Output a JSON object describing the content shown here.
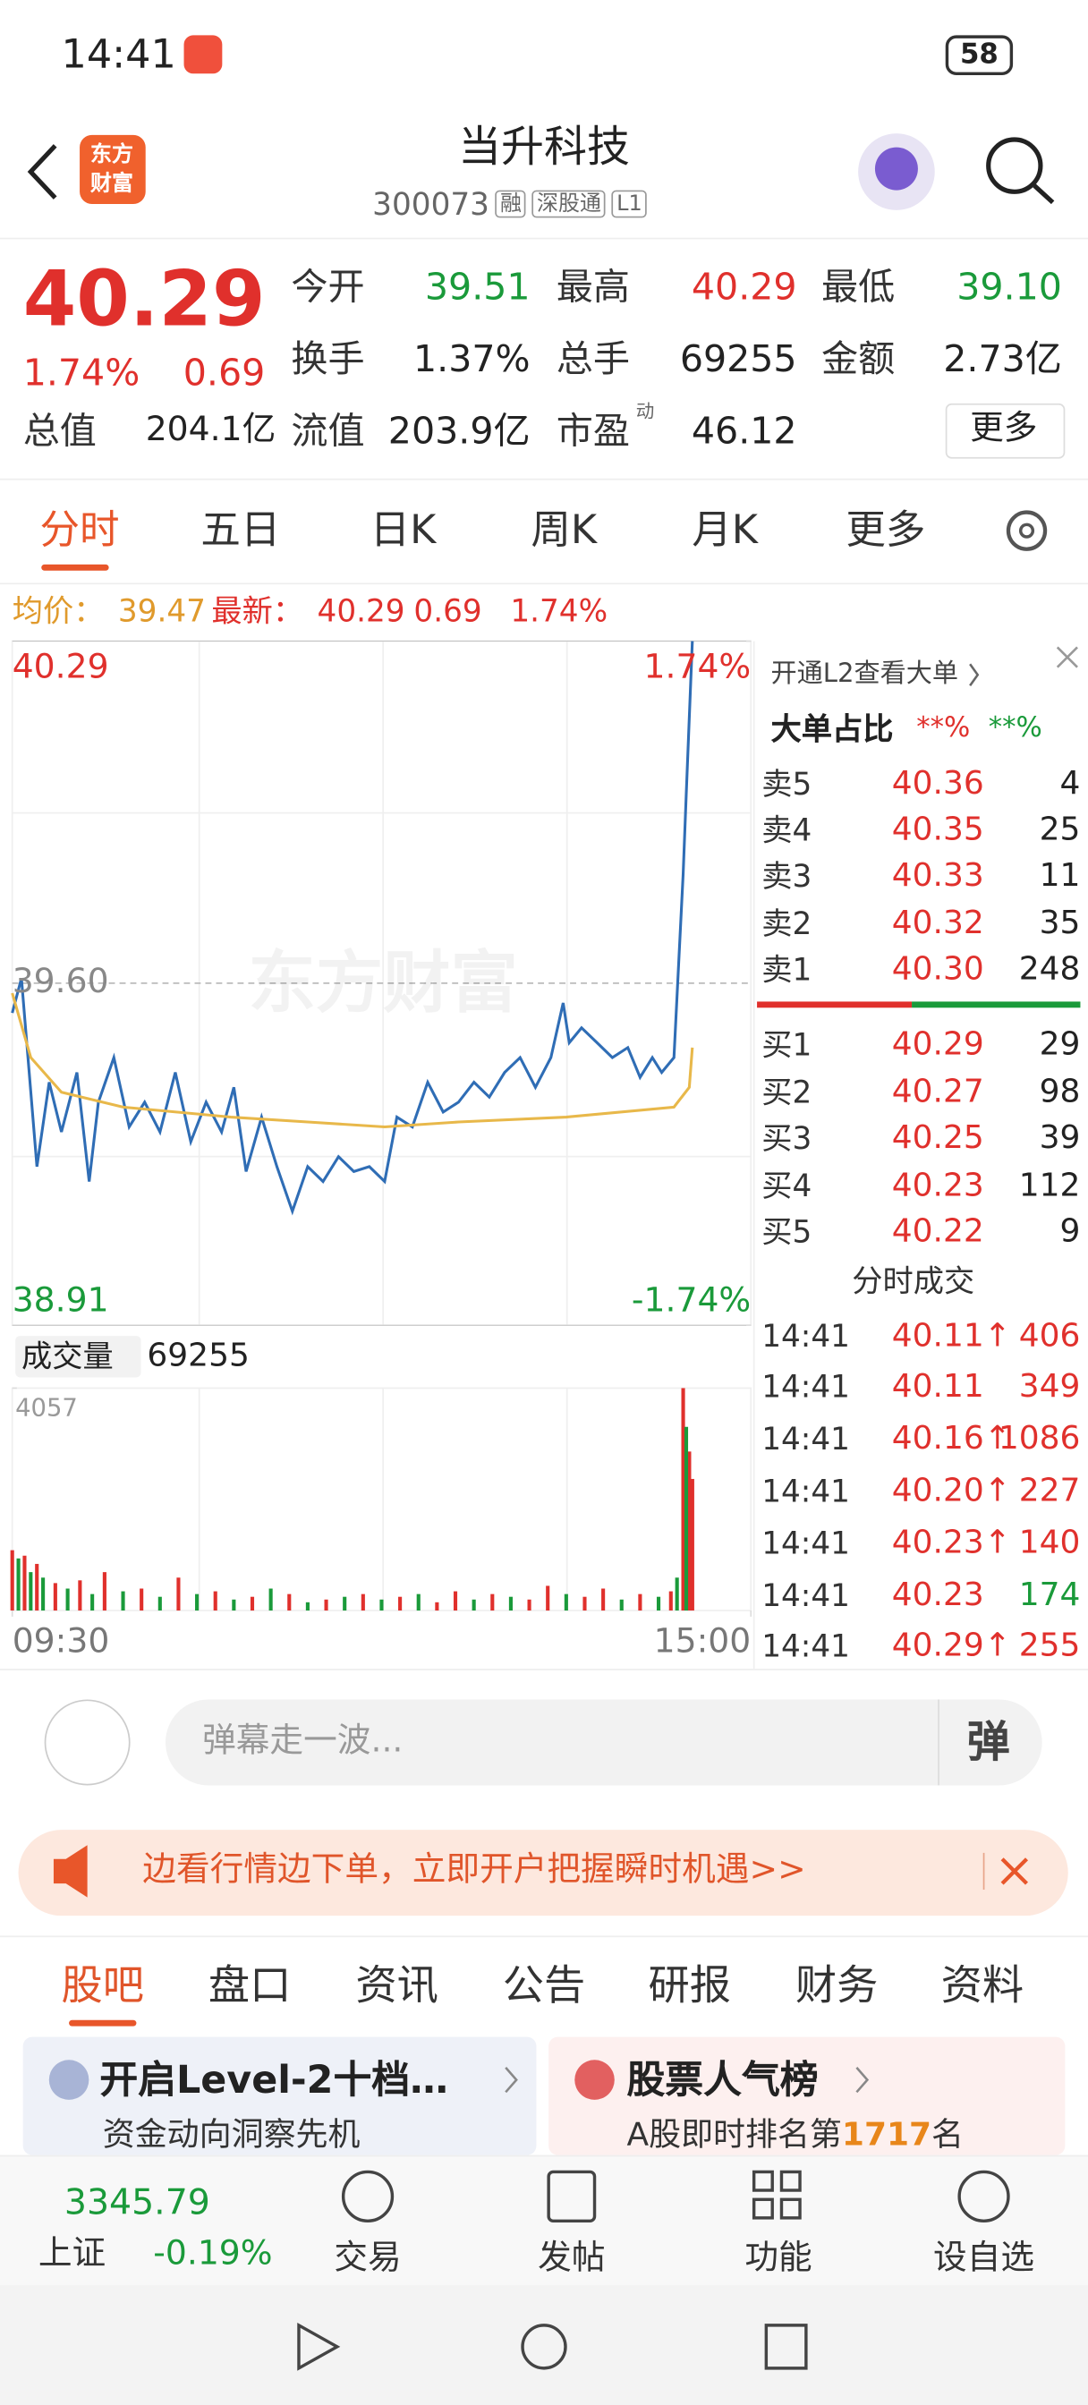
{
  "status_bar": {
    "time": "14:41",
    "battery": "58"
  },
  "header": {
    "logo": [
      "东方",
      "财富"
    ],
    "title": "当升科技",
    "code": "300073",
    "tags": [
      "融",
      "深股通",
      "L1"
    ]
  },
  "quote": {
    "price": "40.29",
    "change_pct": "1.74%",
    "change": "0.69",
    "market_cap": {
      "label": "总值",
      "value": "204.1亿"
    },
    "fields": [
      {
        "label": "今开",
        "value": "39.51",
        "color": "#1a9a3a"
      },
      {
        "label": "最高",
        "value": "40.29",
        "color": "#e0302c"
      },
      {
        "label": "最低",
        "value": "39.10",
        "color": "#1a9a3a"
      },
      {
        "label": "换手",
        "value": "1.37%"
      },
      {
        "label": "总手",
        "value": "69255"
      },
      {
        "label": "金额",
        "value": "2.73亿"
      },
      {
        "label": "流值",
        "value": "203.9亿"
      },
      {
        "label": "市盈",
        "note": "动",
        "value": "46.12"
      }
    ],
    "more": "更多"
  },
  "tabs": [
    "分时",
    "五日",
    "日K",
    "周K",
    "月K",
    "更多"
  ],
  "info_line": {
    "avg_label": "均价：",
    "avg": "39.47",
    "latest_label": "最新：",
    "latest": "40.29",
    "change": "0.69",
    "change_pct": "1.74%"
  },
  "watermark": "东方财富",
  "chart_data": [
    {
      "type": "line",
      "xlim": [
        0,
        240
      ],
      "xticks": [
        {
          "value": 0,
          "label": "09:30"
        },
        {
          "value": 240,
          "label": "15:00"
        }
      ],
      "ylim": [
        38.91,
        40.29
      ],
      "yticks": [
        40.29,
        {
          "value": 39.6,
          "label": "39.60"
        },
        38.91
      ],
      "y2lim": [
        -1.74,
        1.74
      ],
      "y2ticks": [
        {
          "value": 1.74,
          "label": "1.74%"
        },
        {
          "value": -1.74,
          "label": "-1.74%"
        }
      ],
      "grid": true,
      "series": [
        {
          "color": "#2f6db5",
          "x": [
            0,
            3,
            8,
            12,
            16,
            21,
            25,
            28,
            33,
            38,
            43,
            48,
            53,
            58,
            63,
            68,
            72,
            76,
            81,
            86,
            91,
            96,
            101,
            106,
            111,
            116,
            121,
            125,
            130,
            135,
            140,
            145,
            150,
            155,
            160,
            165,
            170,
            175,
            179,
            181,
            185,
            190,
            195,
            200,
            204,
            208,
            211,
            215,
            218,
            219,
            221
          ],
          "values": [
            39.54,
            39.61,
            39.23,
            39.4,
            39.3,
            39.42,
            39.2,
            39.36,
            39.45,
            39.31,
            39.36,
            39.3,
            39.42,
            39.28,
            39.36,
            39.3,
            39.39,
            39.22,
            39.33,
            39.23,
            39.14,
            39.23,
            39.2,
            39.25,
            39.22,
            39.23,
            39.2,
            39.33,
            39.31,
            39.4,
            39.34,
            39.36,
            39.4,
            39.37,
            39.42,
            39.45,
            39.39,
            39.45,
            39.56,
            39.48,
            39.51,
            39.48,
            39.45,
            39.47,
            39.41,
            39.45,
            39.42,
            39.45,
            39.82,
            39.98,
            40.29
          ]
        },
        {
          "color": "#e8b84a",
          "x": [
            0,
            6,
            16,
            36,
            71,
            96,
            121,
            145,
            180,
            215,
            220,
            221
          ],
          "values": [
            39.58,
            39.45,
            39.38,
            39.35,
            39.33,
            39.32,
            39.31,
            39.32,
            39.33,
            39.35,
            39.39,
            39.47
          ]
        }
      ]
    },
    {
      "type": "bar",
      "title": "成交量",
      "total": 69255,
      "xlim": [
        0,
        240
      ],
      "ylim": [
        0,
        4057
      ],
      "yticks": [
        4057
      ],
      "x": [
        0,
        2,
        4,
        6,
        8,
        10,
        14,
        18,
        22,
        26,
        30,
        36,
        42,
        48,
        54,
        60,
        66,
        72,
        78,
        84,
        90,
        96,
        102,
        108,
        114,
        120,
        126,
        132,
        138,
        144,
        150,
        156,
        162,
        168,
        174,
        180,
        186,
        192,
        198,
        204,
        210,
        214,
        216,
        218,
        219,
        220,
        221
      ],
      "series": [
        {
          "color": "#e0302c",
          "values": [
            1100,
            null,
            1000,
            null,
            850,
            null,
            500,
            null,
            550,
            null,
            700,
            null,
            400,
            null,
            600,
            null,
            350,
            null,
            250,
            null,
            300,
            null,
            200,
            null,
            300,
            null,
            250,
            null,
            150,
            350,
            null,
            300,
            null,
            200,
            450,
            null,
            250,
            400,
            null,
            300,
            null,
            350,
            null,
            4057,
            null,
            2900,
            2400
          ]
        },
        {
          "color": "#1a9a3a",
          "values": [
            null,
            950,
            null,
            700,
            null,
            600,
            null,
            400,
            null,
            300,
            null,
            350,
            null,
            250,
            null,
            300,
            null,
            200,
            null,
            400,
            null,
            150,
            null,
            250,
            null,
            200,
            null,
            300,
            null,
            null,
            200,
            null,
            250,
            null,
            null,
            300,
            null,
            null,
            200,
            null,
            250,
            null,
            600,
            null,
            3350,
            null,
            null
          ]
        }
      ]
    }
  ],
  "order_book": {
    "promo": "开通L2查看大单",
    "big_order_label": "大单占比",
    "big_buy": "**%",
    "big_sell": "**%",
    "asks": [
      [
        "卖5",
        "40.36",
        "4"
      ],
      [
        "卖4",
        "40.35",
        "25"
      ],
      [
        "卖3",
        "40.33",
        "11"
      ],
      [
        "卖2",
        "40.32",
        "35"
      ],
      [
        "卖1",
        "40.30",
        "248"
      ]
    ],
    "bids": [
      [
        "买1",
        "40.29",
        "29"
      ],
      [
        "买2",
        "40.27",
        "98"
      ],
      [
        "买3",
        "40.25",
        "39"
      ],
      [
        "买4",
        "40.23",
        "112"
      ],
      [
        "买5",
        "40.22",
        "9"
      ]
    ],
    "trades_title": "分时成交",
    "trades": [
      [
        "14:41",
        "40.11↑",
        "406"
      ],
      [
        "14:41",
        "40.11",
        "349"
      ],
      [
        "14:41",
        "40.16↑",
        "1086"
      ],
      [
        "14:41",
        "40.20↑",
        "227"
      ],
      [
        "14:41",
        "40.23↑",
        "140"
      ],
      [
        "14:41",
        "40.23",
        "174"
      ],
      [
        "14:41",
        "40.29↑",
        "255"
      ]
    ]
  },
  "comment": {
    "placeholder": "弹幕走一波...",
    "button": "弹"
  },
  "banner": "边看行情边下单，立即开户把握瞬时机遇>>",
  "section_tabs": [
    "股吧",
    "盘口",
    "资讯",
    "公告",
    "研报",
    "财务",
    "资料"
  ],
  "cards": [
    {
      "title": "开启Level-2十档…",
      "subtitle": "资金动向洞察先机"
    },
    {
      "title": "股票人气榜",
      "subtitle_parts": [
        "A股即时排名第",
        "1717",
        "名"
      ]
    }
  ],
  "bottom_nav": {
    "index_value": "3345.79",
    "index_name": "上证",
    "index_change": "-0.19%",
    "items": [
      "交易",
      "发帖",
      "功能",
      "设自选"
    ]
  }
}
